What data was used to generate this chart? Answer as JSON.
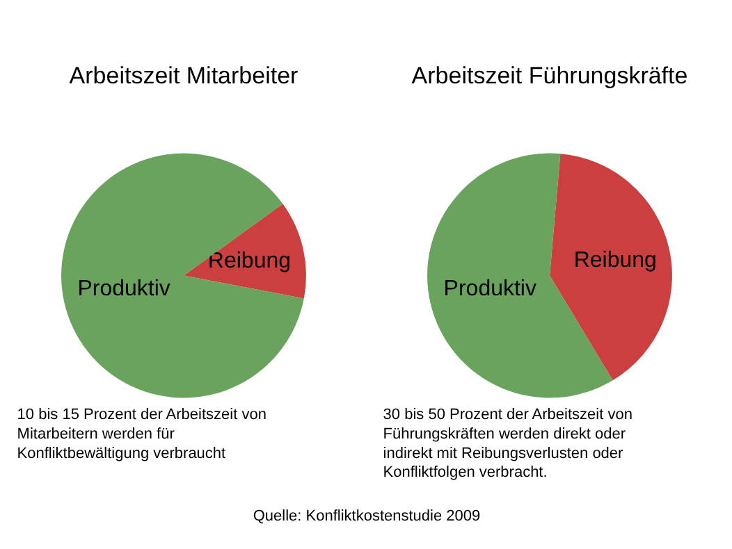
{
  "chart_data": [
    {
      "type": "pie",
      "title": "Arbeitszeit Mitarbeiter",
      "categories": [
        "Produktiv",
        "Reibung"
      ],
      "values": [
        87,
        13
      ],
      "colors": [
        "#6aa35e",
        "#cc3f3f"
      ],
      "annotations": [
        "10 bis 15 Prozent der Arbeitszeit von\nMitarbeitern werden für\nKonfliktbewältigung verbraucht",
        "Quelle: Konfliktkostenstudie 2009"
      ]
    },
    {
      "type": "pie",
      "title": "Arbeitszeit Führungskräfte",
      "categories": [
        "Produktiv",
        "Reibung"
      ],
      "values": [
        60,
        40
      ],
      "colors": [
        "#6aa35e",
        "#cc3f3f"
      ],
      "annotations": [
        "30 bis 50 Prozent der Arbeitszeit von\nFührungskräften werden direkt oder\nindirekt mit Reibungsverlusten oder\nKonfliktfolgen verbracht."
      ]
    }
  ]
}
